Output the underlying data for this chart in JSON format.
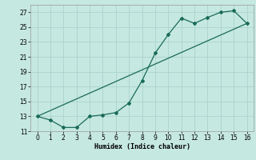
{
  "title": "",
  "xlabel": "Humidex (Indice chaleur)",
  "ylabel": "",
  "bg_color": "#c5e8e0",
  "grid_color": "#aad4cc",
  "line_color": "#1a6b5a",
  "xlim": [
    -0.5,
    16.5
  ],
  "ylim": [
    11,
    28
  ],
  "xticks": [
    0,
    1,
    2,
    3,
    4,
    5,
    6,
    7,
    8,
    9,
    10,
    11,
    12,
    13,
    14,
    15,
    16
  ],
  "yticks": [
    11,
    13,
    15,
    17,
    19,
    21,
    23,
    25,
    27
  ],
  "humidex_x": [
    0,
    1,
    2,
    3,
    4,
    5,
    6,
    7,
    8,
    9,
    10,
    11,
    12,
    13,
    14,
    15,
    16
  ],
  "humidex_y": [
    13.0,
    12.5,
    11.5,
    11.5,
    13.0,
    13.2,
    13.5,
    14.8,
    17.8,
    21.5,
    24.0,
    26.2,
    25.5,
    26.3,
    27.0,
    27.2,
    25.5
  ],
  "trend_x": [
    0,
    16
  ],
  "trend_y": [
    13.0,
    25.5
  ]
}
